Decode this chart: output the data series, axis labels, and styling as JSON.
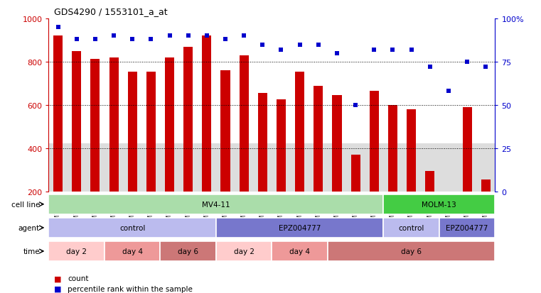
{
  "title": "GDS4290 / 1553101_a_at",
  "samples": [
    "GSM739151",
    "GSM739152",
    "GSM739153",
    "GSM739157",
    "GSM739158",
    "GSM739159",
    "GSM739163",
    "GSM739164",
    "GSM739165",
    "GSM739148",
    "GSM739149",
    "GSM739150",
    "GSM739154",
    "GSM739155",
    "GSM739156",
    "GSM739160",
    "GSM739161",
    "GSM739162",
    "GSM739169",
    "GSM739170",
    "GSM739171",
    "GSM739166",
    "GSM739167",
    "GSM739168"
  ],
  "counts": [
    920,
    848,
    812,
    820,
    755,
    755,
    820,
    870,
    920,
    762,
    830,
    655,
    625,
    755,
    690,
    645,
    370,
    665,
    600,
    580,
    295,
    195,
    590,
    255
  ],
  "percentile": [
    95,
    88,
    88,
    90,
    88,
    88,
    90,
    90,
    90,
    88,
    90,
    85,
    82,
    85,
    85,
    80,
    50,
    82,
    82,
    82,
    72,
    58,
    75,
    72
  ],
  "ylim_left": [
    200,
    1000
  ],
  "ylim_right": [
    0,
    100
  ],
  "left_yticks": [
    200,
    400,
    600,
    800,
    1000
  ],
  "right_yticks": [
    0,
    25,
    50,
    75,
    100
  ],
  "bar_color": "#cc0000",
  "dot_color": "#0000cc",
  "cell_line_rows": [
    {
      "label": "MV4-11",
      "start": 0,
      "end": 18,
      "color": "#aaddaa"
    },
    {
      "label": "MOLM-13",
      "start": 18,
      "end": 24,
      "color": "#44cc44"
    }
  ],
  "agent_rows": [
    {
      "label": "control",
      "start": 0,
      "end": 9,
      "color": "#bbbbee"
    },
    {
      "label": "EPZ004777",
      "start": 9,
      "end": 18,
      "color": "#7777cc"
    },
    {
      "label": "control",
      "start": 18,
      "end": 21,
      "color": "#bbbbee"
    },
    {
      "label": "EPZ004777",
      "start": 21,
      "end": 24,
      "color": "#7777cc"
    }
  ],
  "time_rows": [
    {
      "label": "day 2",
      "start": 0,
      "end": 3,
      "color": "#ffcccc"
    },
    {
      "label": "day 4",
      "start": 3,
      "end": 6,
      "color": "#ee9999"
    },
    {
      "label": "day 6",
      "start": 6,
      "end": 9,
      "color": "#cc7777"
    },
    {
      "label": "day 2",
      "start": 9,
      "end": 12,
      "color": "#ffcccc"
    },
    {
      "label": "day 4",
      "start": 12,
      "end": 15,
      "color": "#ee9999"
    },
    {
      "label": "day 6",
      "start": 15,
      "end": 24,
      "color": "#cc7777"
    }
  ],
  "legend_items": [
    {
      "label": "count",
      "color": "#cc0000"
    },
    {
      "label": "percentile rank within the sample",
      "color": "#0000cc"
    }
  ],
  "row_labels": [
    "cell line",
    "agent",
    "time"
  ],
  "background_color": "#ffffff"
}
